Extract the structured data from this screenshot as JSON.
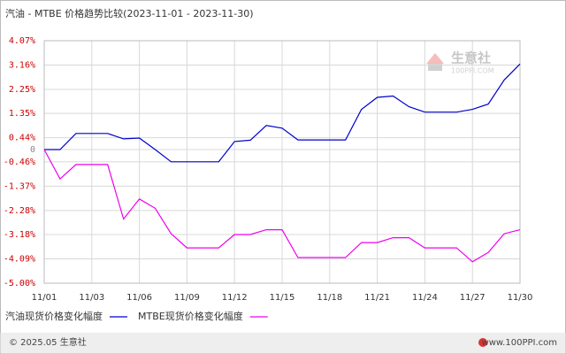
{
  "chart_data": {
    "type": "line",
    "title": "汽油 - MTBE 价格趋势比较(2023-11-01 - 2023-11-30)",
    "categories": [
      "11/01",
      null,
      null,
      "11/03",
      null,
      null,
      "11/06",
      null,
      null,
      "11/09",
      null,
      null,
      "11/12",
      null,
      null,
      "11/15",
      null,
      null,
      "11/18",
      null,
      null,
      "11/21",
      null,
      null,
      "11/24",
      null,
      null,
      "11/27",
      null,
      null,
      "11/30"
    ],
    "series": [
      {
        "name": "汽油现货价格变化幅度",
        "color": "#0000cc",
        "values": [
          0,
          0,
          0.6,
          0.6,
          0.6,
          0.4,
          0.43,
          0,
          -0.46,
          -0.46,
          -0.46,
          -0.46,
          0.3,
          0.35,
          0.9,
          0.8,
          0.36,
          0.36,
          0.36,
          0.36,
          1.5,
          1.95,
          2.0,
          1.6,
          1.4,
          1.4,
          1.4,
          1.5,
          1.7,
          2.6,
          3.2
        ]
      },
      {
        "name": "MTBE现货价格变化幅度",
        "color": "#ee00ee",
        "values": [
          0,
          -1.1,
          -0.56,
          -0.56,
          -0.56,
          -2.6,
          -1.85,
          -2.2,
          -3.15,
          -3.68,
          -3.68,
          -3.68,
          -3.18,
          -3.18,
          -3.0,
          -3.0,
          -4.04,
          -4.04,
          -4.04,
          -4.04,
          -3.48,
          -3.48,
          -3.3,
          -3.3,
          -3.68,
          -3.68,
          -3.68,
          -4.2,
          -3.85,
          -3.15,
          -3.0
        ]
      }
    ],
    "ylim": [
      -5.0,
      4.07
    ],
    "yticks": [
      {
        "value": 4.07,
        "label": "4.07%"
      },
      {
        "value": 3.16,
        "label": "3.16%"
      },
      {
        "value": 2.25,
        "label": "2.25%"
      },
      {
        "value": 1.35,
        "label": "1.35%"
      },
      {
        "value": 0.44,
        "label": "0.44%"
      },
      0,
      {
        "value": -0.46,
        "label": "-0.46%"
      },
      {
        "value": -1.37,
        "label": "-1.37%"
      },
      {
        "value": -2.28,
        "label": "-2.28%"
      },
      {
        "value": -3.18,
        "label": "-3.18%"
      },
      {
        "value": -4.09,
        "label": "-4.09%"
      },
      {
        "value": -5.0,
        "label": "-5.00%"
      }
    ],
    "grid": true,
    "watermark": {
      "name": "生意社",
      "url": "100PPI.COM"
    },
    "footer": {
      "left": "© 2025.05 生意社",
      "right": "www.100PPI.com"
    }
  }
}
